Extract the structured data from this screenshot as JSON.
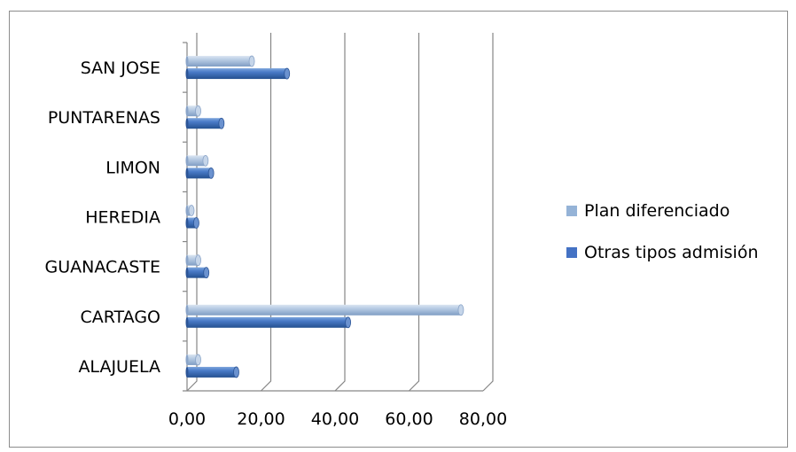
{
  "chart_data": {
    "type": "bar",
    "orientation": "horizontal",
    "style": "3d-cylinder",
    "categories": [
      "SAN JOSE",
      "PUNTARENAS",
      "LIMON",
      "HEREDIA",
      "GUANACASTE",
      "CARTAGO",
      "ALAJUELA"
    ],
    "series": [
      {
        "name": "Plan diferenciado",
        "color": "#95B3D7",
        "values": [
          17.5,
          3.0,
          5.0,
          1.2,
          3.0,
          74.0,
          3.0
        ]
      },
      {
        "name": "Otras tipos admisión",
        "color": "#4472C4",
        "values": [
          27.0,
          9.3,
          6.5,
          2.5,
          5.2,
          43.5,
          13.3
        ]
      }
    ],
    "xlim": [
      0,
      80
    ],
    "xticks": [
      "0,00",
      "20,00",
      "40,00",
      "60,00",
      "80,00"
    ],
    "xtick_values": [
      0,
      20,
      40,
      60,
      80
    ],
    "grid": "vertical",
    "legend_position": "right"
  }
}
